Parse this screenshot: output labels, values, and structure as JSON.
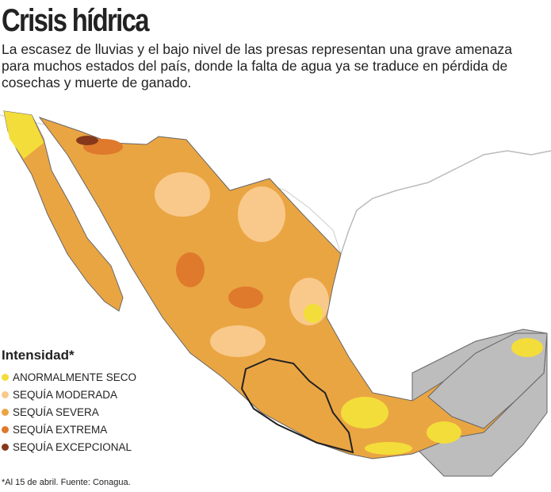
{
  "title": "Crisis hídrica",
  "subtitle": "La escasez de lluvias y el bajo nivel de las presas representan una grave amenaza para muchos estados del país, donde la falta de agua ya se traduce en pérdida de cosechas y muerte de ganado.",
  "legend": {
    "title": "Intensidad*",
    "items": [
      {
        "label": "ANORMALMENTE SECO",
        "color": "#f3dd3a"
      },
      {
        "label": "SEQUÍA MODERADA",
        "color": "#f8c98a"
      },
      {
        "label": "SEQUÍA SEVERA",
        "color": "#eaa543"
      },
      {
        "label": "SEQUÍA EXTREMA",
        "color": "#df7a2c"
      },
      {
        "label": "SEQUÍA EXCEPCIONAL",
        "color": "#86391a"
      }
    ]
  },
  "footnote": "*Al 15 de abril. Fuente: Conagua."
}
